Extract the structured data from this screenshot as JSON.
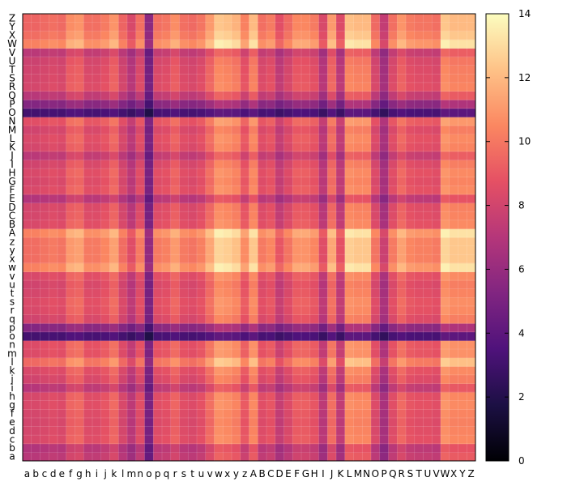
{
  "chart_data": {
    "type": "heatmap",
    "x_labels": [
      "a",
      "b",
      "c",
      "d",
      "e",
      "f",
      "g",
      "h",
      "i",
      "j",
      "k",
      "l",
      "m",
      "n",
      "o",
      "p",
      "q",
      "r",
      "s",
      "t",
      "u",
      "v",
      "w",
      "x",
      "y",
      "z",
      "A",
      "B",
      "C",
      "D",
      "E",
      "F",
      "G",
      "H",
      "I",
      "J",
      "K",
      "L",
      "M",
      "N",
      "O",
      "P",
      "Q",
      "R",
      "S",
      "T",
      "U",
      "V",
      "W",
      "X",
      "Y",
      "Z"
    ],
    "y_labels": [
      "a",
      "b",
      "c",
      "d",
      "e",
      "f",
      "g",
      "h",
      "i",
      "j",
      "k",
      "l",
      "m",
      "n",
      "o",
      "p",
      "q",
      "r",
      "s",
      "t",
      "u",
      "v",
      "w",
      "x",
      "y",
      "z",
      "A",
      "B",
      "C",
      "D",
      "E",
      "F",
      "G",
      "H",
      "I",
      "J",
      "K",
      "L",
      "M",
      "N",
      "O",
      "P",
      "Q",
      "R",
      "S",
      "T",
      "U",
      "V",
      "W",
      "X",
      "Y",
      "Z"
    ],
    "row_factor": [
      4.55,
      4.4,
      5.25,
      5.2,
      5.15,
      5.2,
      5.3,
      5.25,
      4.5,
      5.1,
      5.3,
      6.1,
      5.4,
      5.4,
      2.0,
      3.4,
      5.1,
      5.3,
      5.35,
      5.2,
      5.1,
      5.3,
      6.6,
      6.2,
      6.2,
      6.2,
      6.6,
      5.3,
      5.2,
      5.15,
      4.4,
      5.3,
      5.2,
      5.3,
      5.1,
      4.6,
      5.2,
      5.3,
      5.1,
      5.5,
      2.0,
      3.4,
      4.55,
      5.2,
      5.15,
      5.1,
      5.0,
      4.6,
      6.6,
      6.2,
      6.0,
      6.0
    ],
    "col_factor": [
      5.0,
      5.0,
      5.1,
      5.2,
      5.1,
      5.7,
      5.8,
      5.2,
      5.2,
      5.4,
      5.8,
      5.0,
      4.4,
      5.2,
      3.0,
      5.2,
      5.3,
      5.7,
      5.2,
      5.1,
      5.3,
      5.9,
      6.6,
      6.5,
      6.3,
      5.5,
      6.4,
      5.2,
      5.4,
      4.6,
      5.1,
      5.6,
      5.6,
      5.4,
      4.4,
      5.9,
      4.5,
      6.5,
      6.4,
      6.4,
      5.1,
      4.0,
      5.2,
      5.8,
      5.4,
      5.3,
      5.3,
      5.2,
      6.6,
      6.4,
      6.4,
      6.4
    ],
    "value_formula": "value[i][j] = row_factor[i] * col_factor[j] / 3.2",
    "colorscale": "magma",
    "colorbar": {
      "ticks": [
        0,
        2,
        4,
        6,
        8,
        10,
        12,
        14
      ],
      "min": 0,
      "max": 14
    },
    "grid": true,
    "legend": "colorbar-right",
    "title": "",
    "xlabel": "",
    "ylabel": ""
  }
}
